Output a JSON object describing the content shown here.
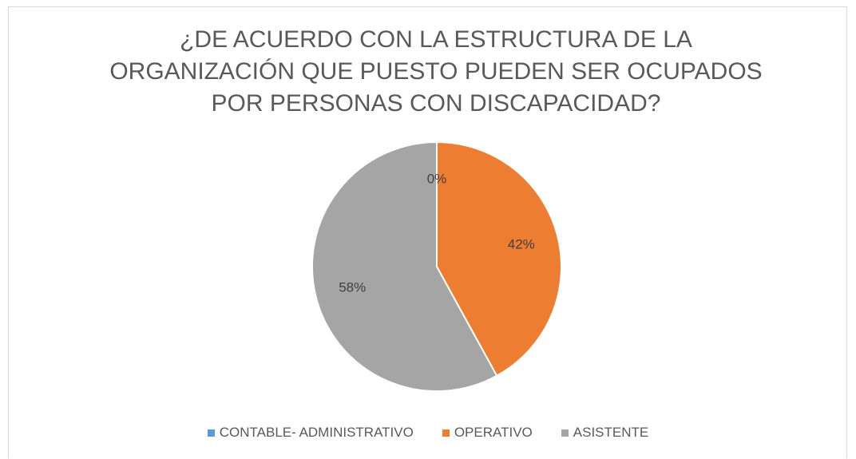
{
  "chart_data": {
    "type": "pie",
    "title": "¿DE ACUERDO CON LA ESTRUCTURA DE LA ORGANIZACIÓN QUE PUESTO PUEDEN SER OCUPADOS POR PERSONAS CON DISCAPACIDAD?",
    "categories": [
      "CONTABLE- ADMINISTRATIVO",
      "OPERATIVO",
      "ASISTENTE"
    ],
    "values": [
      0,
      42,
      58
    ],
    "value_labels": [
      "0%",
      "42%",
      "58%"
    ],
    "colors": [
      "#5b9bd5",
      "#ed7d31",
      "#a5a5a5"
    ],
    "legend": "bottom"
  }
}
